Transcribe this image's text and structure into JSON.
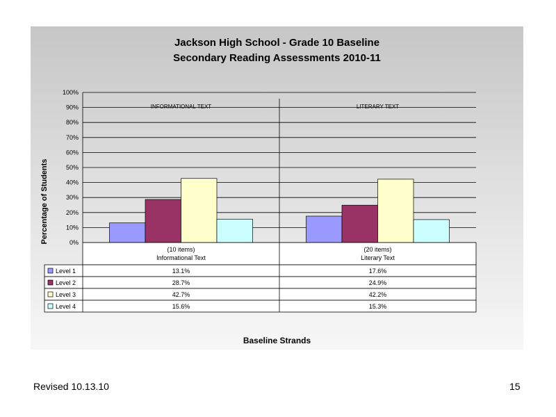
{
  "chart_data": {
    "type": "bar",
    "title": "Jackson High School - Grade 10 Baseline",
    "subtitle": "Secondary Reading Assessments 2010-11",
    "ylabel": "Percentage of Students",
    "xlabel": "Baseline Strands",
    "ylim": [
      0,
      100
    ],
    "yticks": [
      "0%",
      "10%",
      "20%",
      "30%",
      "40%",
      "50%",
      "60%",
      "70%",
      "80%",
      "90%",
      "100%"
    ],
    "grid": true,
    "categories": [
      {
        "top_label": "INFORMATIONAL TEXT",
        "items": "(10 items)",
        "name": "Informational Text"
      },
      {
        "top_label": "LITERARY TEXT",
        "items": "(20 items)",
        "name": "Literary Text"
      }
    ],
    "series": [
      {
        "name": "Level 1",
        "color": "#9999ff",
        "values": [
          13.1,
          17.6
        ],
        "labels": [
          "13.1%",
          "17.6%"
        ]
      },
      {
        "name": "Level 2",
        "color": "#993366",
        "values": [
          28.7,
          24.9
        ],
        "labels": [
          "28.7%",
          "24.9%"
        ]
      },
      {
        "name": "Level 3",
        "color": "#ffffcc",
        "values": [
          42.7,
          42.2
        ],
        "labels": [
          "42.7%",
          "42.2%"
        ]
      },
      {
        "name": "Level 4",
        "color": "#ccffff",
        "values": [
          15.6,
          15.3
        ],
        "labels": [
          "15.6%",
          "15.3%"
        ]
      }
    ]
  },
  "footer": {
    "revised": "Revised  10.13.10",
    "page_number": "15"
  }
}
